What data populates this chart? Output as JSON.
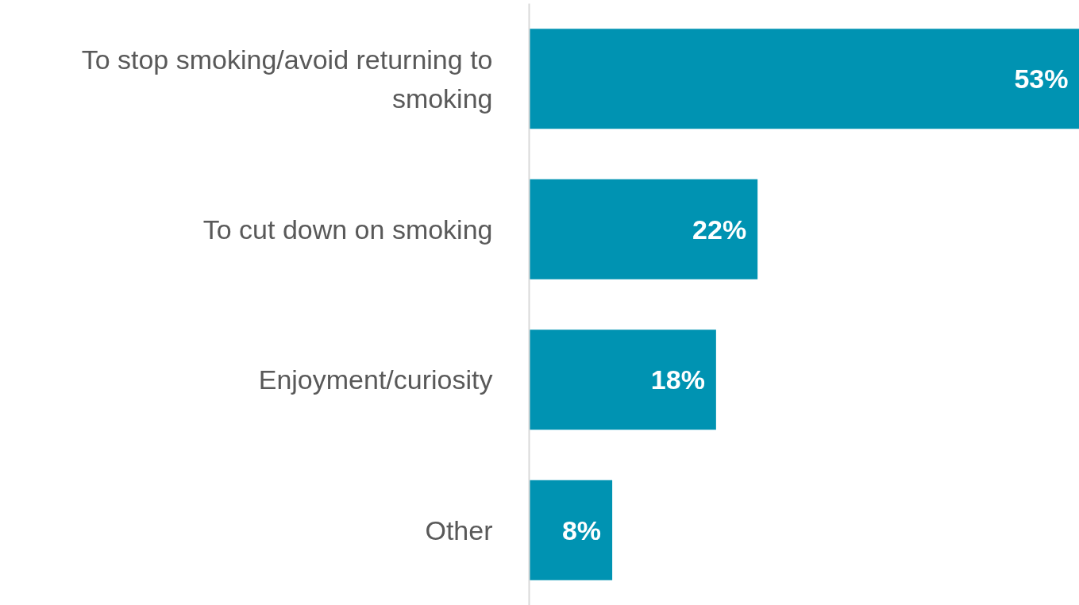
{
  "chart_data": {
    "type": "bar",
    "orientation": "horizontal",
    "categories": [
      "To stop smoking/avoid returning to smoking",
      "To cut down on smoking",
      "Enjoyment/curiosity",
      "Other"
    ],
    "values": [
      53,
      22,
      18,
      8
    ],
    "value_labels": [
      "53%",
      "22%",
      "18%",
      "8%"
    ],
    "color": "#0093b2",
    "grid": false
  }
}
